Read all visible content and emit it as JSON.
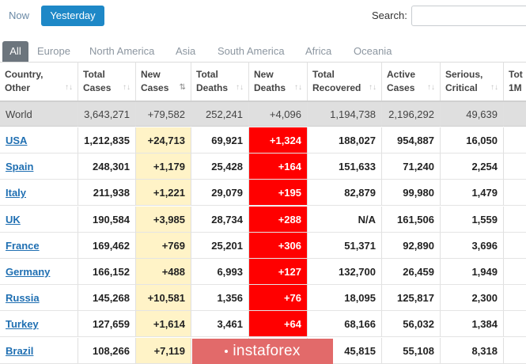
{
  "toggle": {
    "now": "Now",
    "yesterday": "Yesterday"
  },
  "search": {
    "label": "Search:",
    "value": "",
    "placeholder": ""
  },
  "regions": [
    "All",
    "Europe",
    "North America",
    "Asia",
    "South America",
    "Africa",
    "Oceania"
  ],
  "columns": [
    {
      "line1": "Country,",
      "line2": "Other"
    },
    {
      "line1": "Total",
      "line2": "Cases"
    },
    {
      "line1": "New",
      "line2": "Cases"
    },
    {
      "line1": "Total",
      "line2": "Deaths"
    },
    {
      "line1": "New",
      "line2": "Deaths"
    },
    {
      "line1": "Total",
      "line2": "Recovered"
    },
    {
      "line1": "Active",
      "line2": "Cases"
    },
    {
      "line1": "Serious,",
      "line2": "Critical"
    },
    {
      "line1": "Tot",
      "line2": "1M"
    }
  ],
  "world": [
    "World",
    "3,643,271",
    "+79,582",
    "252,241",
    "+4,096",
    "1,194,738",
    "2,196,292",
    "49,639",
    ""
  ],
  "rows": [
    [
      "USA",
      "1,212,835",
      "+24,713",
      "69,921",
      "+1,324",
      "188,027",
      "954,887",
      "16,050",
      ""
    ],
    [
      "Spain",
      "248,301",
      "+1,179",
      "25,428",
      "+164",
      "151,633",
      "71,240",
      "2,254",
      ""
    ],
    [
      "Italy",
      "211,938",
      "+1,221",
      "29,079",
      "+195",
      "82,879",
      "99,980",
      "1,479",
      ""
    ],
    [
      "UK",
      "190,584",
      "+3,985",
      "28,734",
      "+288",
      "N/A",
      "161,506",
      "1,559",
      ""
    ],
    [
      "France",
      "169,462",
      "+769",
      "25,201",
      "+306",
      "51,371",
      "92,890",
      "3,696",
      ""
    ],
    [
      "Germany",
      "166,152",
      "+488",
      "6,993",
      "+127",
      "132,700",
      "26,459",
      "1,949",
      ""
    ],
    [
      "Russia",
      "145,268",
      "+10,581",
      "1,356",
      "+76",
      "18,095",
      "125,817",
      "2,300",
      ""
    ],
    [
      "Turkey",
      "127,659",
      "+1,614",
      "3,461",
      "+64",
      "68,166",
      "56,032",
      "1,384",
      ""
    ],
    [
      "Brazil",
      "108,266",
      "+7,119",
      "",
      "",
      "45,815",
      "55,108",
      "8,318",
      ""
    ]
  ],
  "watermark": "instaforex",
  "colors": {
    "accent": "#1e88c7",
    "new_cases_bg": "#fff3c7",
    "new_deaths_bg": "#ff0000",
    "link": "#1f6fb2",
    "world_bg": "#dfdfdf"
  }
}
